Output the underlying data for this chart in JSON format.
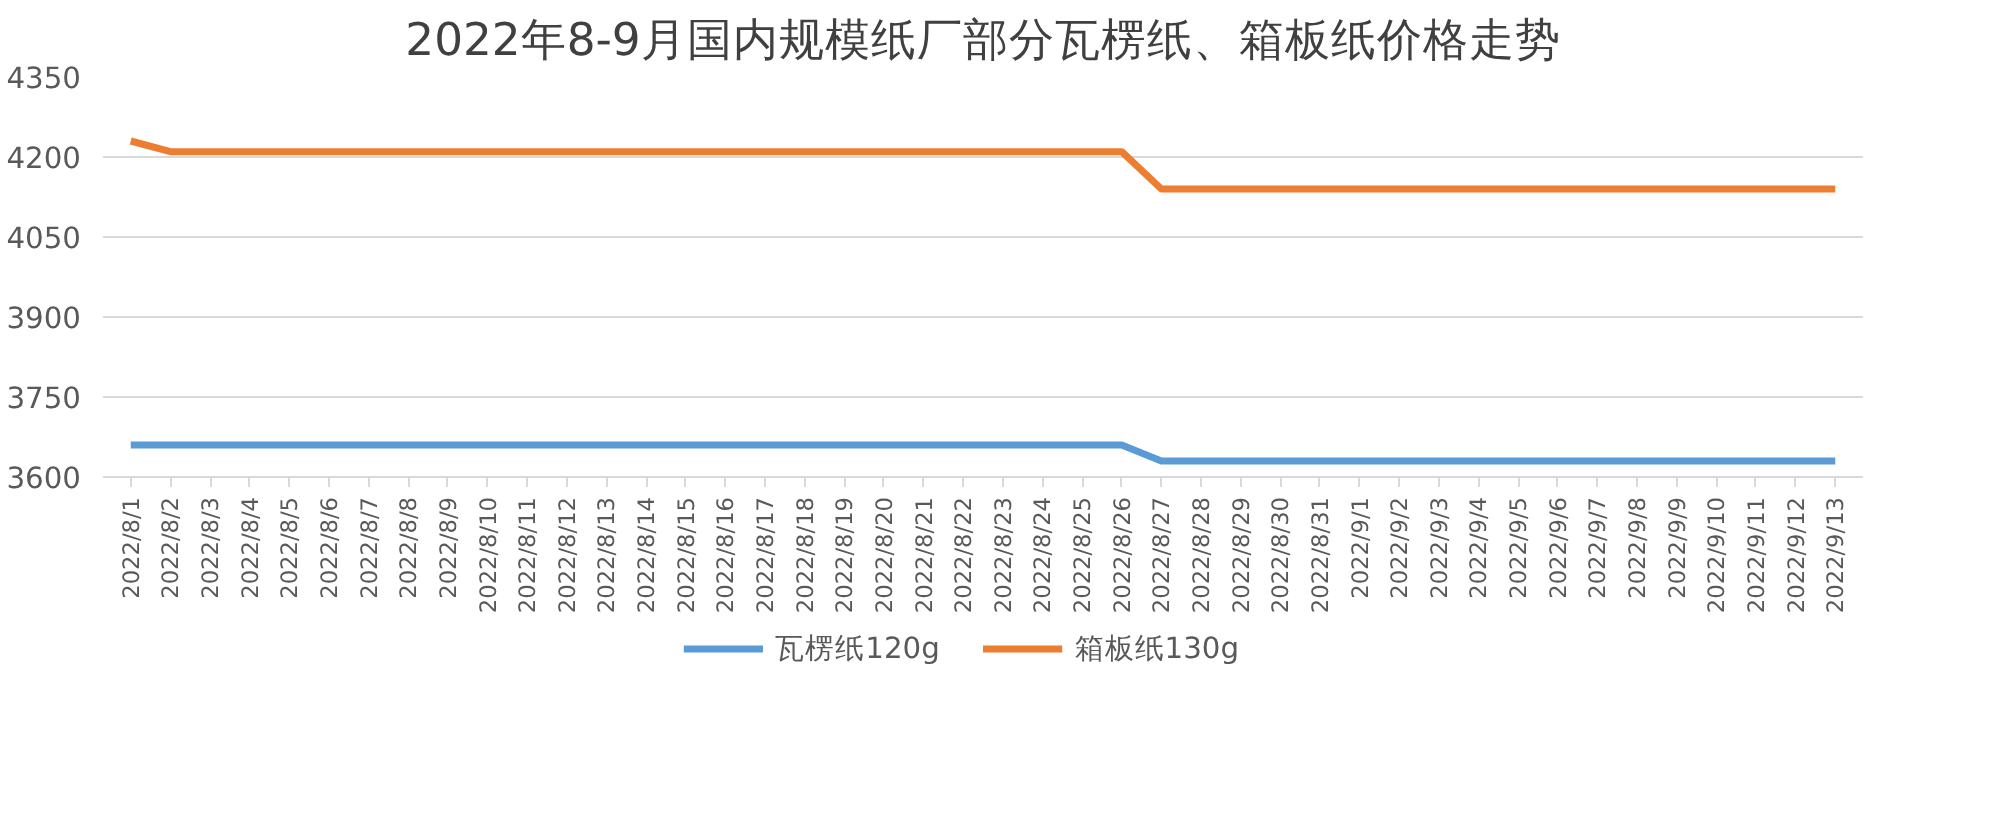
{
  "chart_data": {
    "type": "line",
    "title": "2022年8-9月国内规模纸厂部分瓦楞纸、箱板纸价格走势",
    "categories": [
      "2022/8/1",
      "2022/8/2",
      "2022/8/3",
      "2022/8/4",
      "2022/8/5",
      "2022/8/6",
      "2022/8/7",
      "2022/8/8",
      "2022/8/9",
      "2022/8/10",
      "2022/8/11",
      "2022/8/12",
      "2022/8/13",
      "2022/8/14",
      "2022/8/15",
      "2022/8/16",
      "2022/8/17",
      "2022/8/18",
      "2022/8/19",
      "2022/8/20",
      "2022/8/21",
      "2022/8/22",
      "2022/8/23",
      "2022/8/24",
      "2022/8/25",
      "2022/8/26",
      "2022/8/27",
      "2022/8/28",
      "2022/8/29",
      "2022/8/30",
      "2022/8/31",
      "2022/9/1",
      "2022/9/2",
      "2022/9/3",
      "2022/9/4",
      "2022/9/5",
      "2022/9/6",
      "2022/9/7",
      "2022/9/8",
      "2022/9/9",
      "2022/9/10",
      "2022/9/11",
      "2022/9/12",
      "2022/9/13"
    ],
    "series": [
      {
        "name": "瓦楞纸120g",
        "color": "#5b9bd5",
        "values": [
          3660,
          3660,
          3660,
          3660,
          3660,
          3660,
          3660,
          3660,
          3660,
          3660,
          3660,
          3660,
          3660,
          3660,
          3660,
          3660,
          3660,
          3660,
          3660,
          3660,
          3660,
          3660,
          3660,
          3660,
          3660,
          3660,
          3630,
          3630,
          3630,
          3630,
          3630,
          3630,
          3630,
          3630,
          3630,
          3630,
          3630,
          3630,
          3630,
          3630,
          3630,
          3630,
          3630,
          3630
        ]
      },
      {
        "name": "箱板纸130g",
        "color": "#ed7d31",
        "values": [
          4230,
          4210,
          4210,
          4210,
          4210,
          4210,
          4210,
          4210,
          4210,
          4210,
          4210,
          4210,
          4210,
          4210,
          4210,
          4210,
          4210,
          4210,
          4210,
          4210,
          4210,
          4210,
          4210,
          4210,
          4210,
          4210,
          4140,
          4140,
          4140,
          4140,
          4140,
          4140,
          4140,
          4140,
          4140,
          4140,
          4140,
          4140,
          4140,
          4140,
          4140,
          4140,
          4140,
          4140
        ]
      }
    ],
    "ylim": [
      3600,
      4350
    ],
    "yticks": [
      3600,
      3750,
      3900,
      4050,
      4200,
      4350
    ],
    "grid": "y",
    "legend": "bottom",
    "marker": "none",
    "line_style": "solid"
  }
}
